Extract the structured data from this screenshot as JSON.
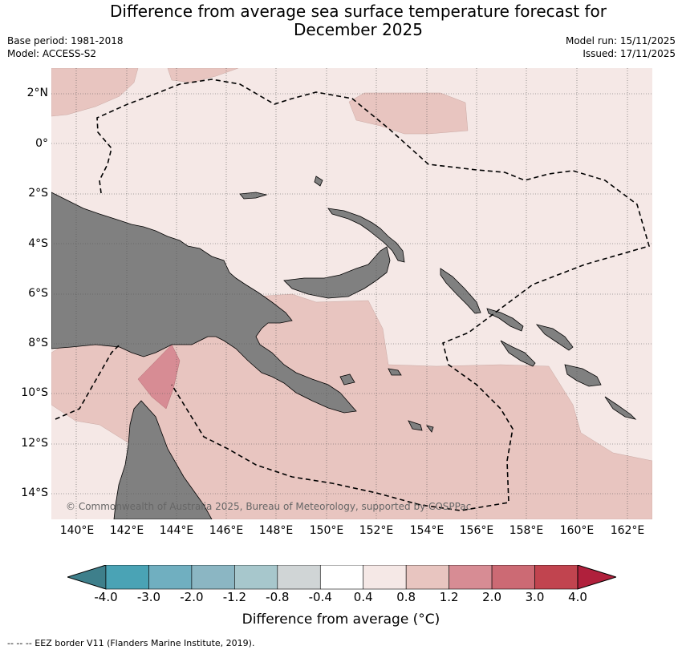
{
  "header": {
    "title_line1": "Difference from average sea surface temperature forecast for",
    "title_line2": "December 2025",
    "base_period": "Base period: 1981-2018",
    "model": "Model: ACCESS-S2",
    "model_run": "Model run: 15/11/2025",
    "issued": "Issued: 17/11/2025"
  },
  "map": {
    "lat_labels": [
      "2°N",
      "0°",
      "2°S",
      "4°S",
      "6°S",
      "8°S",
      "10°S",
      "12°S",
      "14°S"
    ],
    "lon_labels": [
      "140°E",
      "142°E",
      "144°E",
      "146°E",
      "148°E",
      "150°E",
      "152°E",
      "154°E",
      "156°E",
      "158°E",
      "160°E",
      "162°E"
    ],
    "copyright": "© Commonwealth of Australia 2025, Bureau of Meteorology, supported by COSPPac",
    "colors": {
      "land": "#808080",
      "anomaly_0_4_to_0_8": "#f5e8e6",
      "anomaly_0_8_to_1_2": "#e8c5c0",
      "anomaly_1_2_to_2_0": "#d78c94"
    }
  },
  "colorbar": {
    "title": "Difference from average (°C)",
    "ticks": [
      "-4.0",
      "-3.0",
      "-2.0",
      "-1.2",
      "-0.8",
      "-0.4",
      "0.4",
      "0.8",
      "1.2",
      "2.0",
      "3.0",
      "4.0"
    ],
    "low_color": "#3e7f8b",
    "high_color": "#b0203c",
    "colors": [
      "#4aa3b5",
      "#70afc0",
      "#8bb6c3",
      "#a7c7cc",
      "#d0d5d6",
      "#ffffff",
      "#f5e8e6",
      "#e8c5c0",
      "#d78c94",
      "#cc6a74",
      "#c1444f"
    ]
  },
  "footnote": "--  --  -- EEZ border V11 (Flanders Marine Institute, 2019)."
}
